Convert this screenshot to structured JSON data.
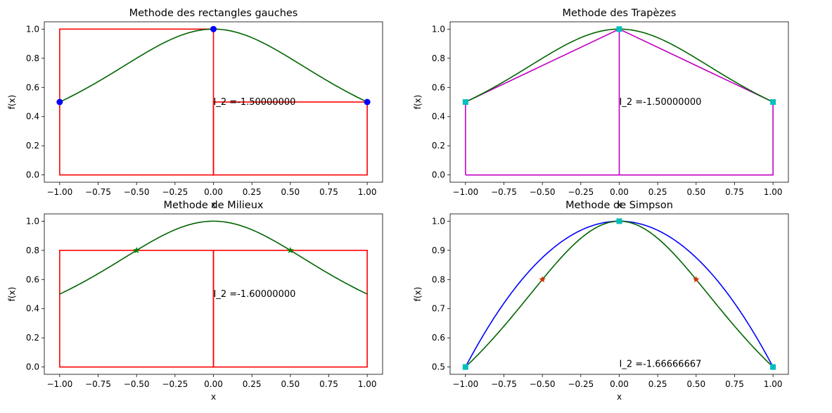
{
  "chart_data": [
    {
      "type": "line",
      "title": "Methode des rectangles gauches",
      "xlabel": "x",
      "ylabel": "f(x)",
      "xlim": [
        -1.1,
        1.1
      ],
      "ylim": [
        -0.05,
        1.05
      ],
      "xticks": [
        -1.0,
        -0.75,
        -0.5,
        -0.25,
        0.0,
        0.25,
        0.5,
        0.75,
        1.0
      ],
      "yticks": [
        0.0,
        0.2,
        0.4,
        0.6,
        0.8,
        1.0
      ],
      "xticklabels": [
        "−1.00",
        "−0.75",
        "−0.50",
        "−0.25",
        "0.00",
        "0.25",
        "0.50",
        "0.75",
        "1.00"
      ],
      "yticklabels": [
        "0.0",
        "0.2",
        "0.4",
        "0.6",
        "0.8",
        "1.0"
      ],
      "curve": {
        "function": "1/(1+x^2)",
        "x_range": [
          -1,
          1
        ],
        "color": "#006400"
      },
      "rectangles": [
        {
          "x0": -1,
          "x1": 0,
          "height": 1.0
        },
        {
          "x0": 0,
          "x1": 1,
          "height": 0.5
        }
      ],
      "rect_color": "#ff0000",
      "rect_fill": false,
      "markers": [
        {
          "x": -1,
          "y": 0.5
        },
        {
          "x": 0,
          "y": 1.0
        },
        {
          "x": 1,
          "y": 0.5
        }
      ],
      "marker_shape": "circle",
      "marker_color": "#0000ff",
      "annotation": {
        "text": "I_2 =-1.50000000",
        "x": 0.0,
        "y": 0.5
      }
    },
    {
      "type": "line",
      "title": "Methode des Trapèzes",
      "xlabel": "x",
      "ylabel": "f(x)",
      "xlim": [
        -1.1,
        1.1
      ],
      "ylim": [
        -0.05,
        1.05
      ],
      "xticks": [
        -1.0,
        -0.75,
        -0.5,
        -0.25,
        0.0,
        0.25,
        0.5,
        0.75,
        1.0
      ],
      "yticks": [
        0.0,
        0.2,
        0.4,
        0.6,
        0.8,
        1.0
      ],
      "xticklabels": [
        "−1.00",
        "−0.75",
        "−0.50",
        "−0.25",
        "0.00",
        "0.25",
        "0.50",
        "0.75",
        "1.00"
      ],
      "yticklabels": [
        "0.0",
        "0.2",
        "0.4",
        "0.6",
        "0.8",
        "1.0"
      ],
      "curve": {
        "function": "1/(1+x^2)",
        "x_range": [
          -1,
          1
        ],
        "color": "#006400"
      },
      "polygon": {
        "points": [
          [
            -1,
            0
          ],
          [
            -1,
            0.5
          ],
          [
            0,
            1.0
          ],
          [
            1,
            0.5
          ],
          [
            1,
            0
          ],
          [
            -1,
            0
          ]
        ],
        "dividers": [
          [
            [
              0,
              0
            ],
            [
              0,
              1.0
            ]
          ]
        ],
        "color": "#c000c0"
      },
      "markers": [
        {
          "x": -1,
          "y": 0.5
        },
        {
          "x": 0,
          "y": 1.0
        },
        {
          "x": 1,
          "y": 0.5
        }
      ],
      "marker_shape": "square",
      "marker_color": "#00bfbf",
      "annotation": {
        "text": "I_2 =-1.50000000",
        "x": 0.0,
        "y": 0.5
      }
    },
    {
      "type": "line",
      "title": "Methode de Milieux",
      "xlabel": "x",
      "ylabel": "f(x)",
      "xlim": [
        -1.1,
        1.1
      ],
      "ylim": [
        -0.05,
        1.05
      ],
      "xticks": [
        -1.0,
        -0.75,
        -0.5,
        -0.25,
        0.0,
        0.25,
        0.5,
        0.75,
        1.0
      ],
      "yticks": [
        0.0,
        0.2,
        0.4,
        0.6,
        0.8,
        1.0
      ],
      "xticklabels": [
        "−1.00",
        "−0.75",
        "−0.50",
        "−0.25",
        "0.00",
        "0.25",
        "0.50",
        "0.75",
        "1.00"
      ],
      "yticklabels": [
        "0.0",
        "0.2",
        "0.4",
        "0.6",
        "0.8",
        "1.0"
      ],
      "curve": {
        "function": "1/(1+x^2)",
        "x_range": [
          -1,
          1
        ],
        "color": "#006400"
      },
      "rectangles": [
        {
          "x0": -1,
          "x1": 0,
          "height": 0.8
        },
        {
          "x0": 0,
          "x1": 1,
          "height": 0.8
        }
      ],
      "rect_color": "#ff0000",
      "rect_fill": false,
      "markers": [
        {
          "x": -0.5,
          "y": 0.8
        },
        {
          "x": 0.5,
          "y": 0.8
        }
      ],
      "marker_shape": "star",
      "marker_color": "#008000",
      "annotation": {
        "text": "I_2 =-1.60000000",
        "x": 0.0,
        "y": 0.5
      }
    },
    {
      "type": "line",
      "title": "Methode de Simpson",
      "xlabel": "x",
      "ylabel": "f(x)",
      "xlim": [
        -1.1,
        1.1
      ],
      "ylim": [
        0.475,
        1.025
      ],
      "xticks": [
        -1.0,
        -0.75,
        -0.5,
        -0.25,
        0.0,
        0.25,
        0.5,
        0.75,
        1.0
      ],
      "yticks": [
        0.5,
        0.6,
        0.7,
        0.8,
        0.9,
        1.0
      ],
      "xticklabels": [
        "−1.00",
        "−0.75",
        "−0.50",
        "−0.25",
        "0.00",
        "0.25",
        "0.50",
        "0.75",
        "1.00"
      ],
      "yticklabels": [
        "0.5",
        "0.6",
        "0.7",
        "0.8",
        "0.9",
        "1.0"
      ],
      "curve": {
        "function": "1/(1+x^2)",
        "x_range": [
          -1,
          1
        ],
        "color": "#006400"
      },
      "parabola": {
        "function": "1 - 0.5*x^2",
        "x_range": [
          -1,
          1
        ],
        "color": "#0000ff"
      },
      "markers": [
        {
          "x": -1,
          "y": 0.5
        },
        {
          "x": 0,
          "y": 1.0
        },
        {
          "x": 1,
          "y": 0.5
        }
      ],
      "marker_shape": "square",
      "marker_color": "#00bfbf",
      "star_markers": [
        {
          "x": -0.5,
          "y": 0.8
        },
        {
          "x": 0.5,
          "y": 0.8
        }
      ],
      "star_color": "#cc3300",
      "annotation": {
        "text": "I_2 =-1.66666667",
        "x": 0.0,
        "y": 0.5
      }
    }
  ]
}
